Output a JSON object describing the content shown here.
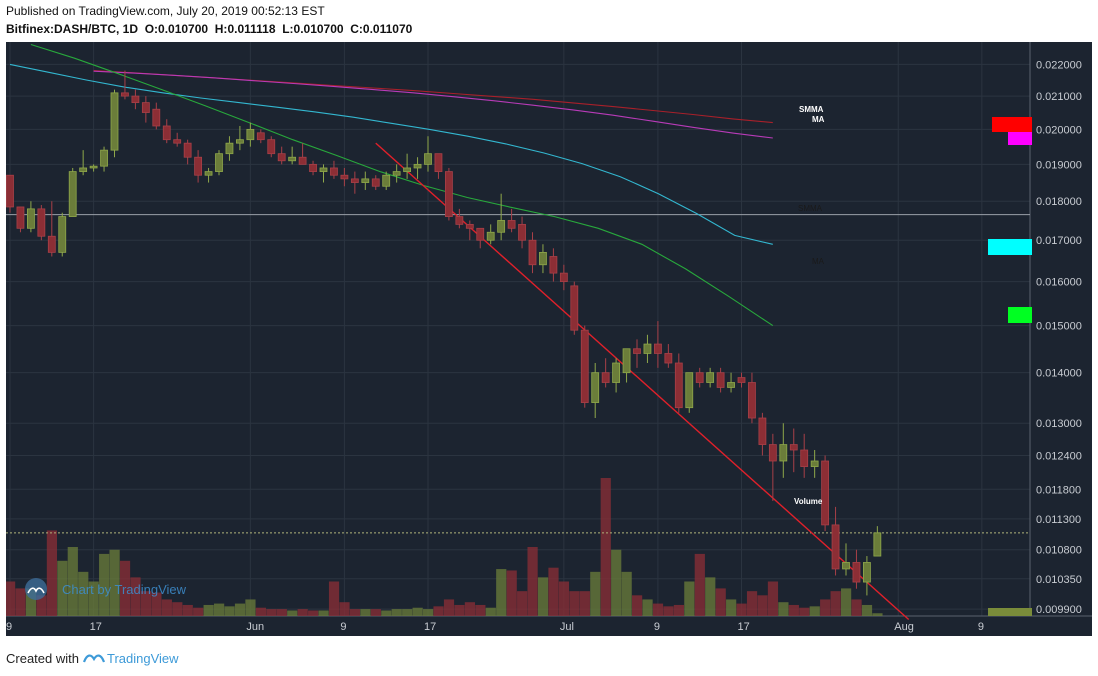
{
  "header": {
    "published": "Published on TradingView.com, July 20, 2019 00:52:13 EST",
    "symbol": "Bitfinex:DASH/BTC, 1D",
    "o_label": "O:",
    "o_value": "0.010700",
    "h_label": "H:",
    "h_value": "0.011118",
    "l_label": "L:",
    "l_value": "0.010700",
    "c_label": "C:",
    "c_value": "0.011070"
  },
  "footer": {
    "created_with": "Created with",
    "brand": "TradingView"
  },
  "watermark": "Chart by TradingView",
  "colors": {
    "background": "#1c2430",
    "up": "#6b7d3a",
    "down": "#8c2e35",
    "grid": "#2b3440",
    "smma_red": "#a8202a",
    "ma_magenta": "#b83bb8",
    "cyan": "#33b7d0",
    "green": "#28a83c",
    "trendline": "#e0202a"
  },
  "chart_data": {
    "type": "candlestick",
    "scale": "log",
    "y_ticks": [
      "0.022000",
      "0.021000",
      "0.020000",
      "0.019000",
      "0.018000",
      "0.017000",
      "0.016000",
      "0.015000",
      "0.014000",
      "0.013000",
      "0.012400",
      "0.011800",
      "0.011300",
      "0.010800",
      "0.010350",
      "0.009900"
    ],
    "x_ticks": [
      "9",
      "17",
      "Jun",
      "9",
      "17",
      "Jul",
      "9",
      "17",
      "Aug",
      "9"
    ],
    "ylim": [
      0.0098,
      0.0226
    ],
    "candles": [
      [
        0.0187,
        0.0187,
        0.0177,
        0.01785,
        0.25
      ],
      [
        0.01785,
        0.01785,
        0.0172,
        0.0173,
        0.2
      ],
      [
        0.0173,
        0.018,
        0.0172,
        0.0178,
        0.2
      ],
      [
        0.0178,
        0.0179,
        0.017,
        0.0171,
        0.15
      ],
      [
        0.0171,
        0.018,
        0.0166,
        0.0167,
        0.62
      ],
      [
        0.0167,
        0.0177,
        0.0166,
        0.0176,
        0.4
      ],
      [
        0.0176,
        0.0189,
        0.0176,
        0.0188,
        0.5
      ],
      [
        0.0188,
        0.0194,
        0.0187,
        0.0189,
        0.32
      ],
      [
        0.0189,
        0.019,
        0.0188,
        0.01895,
        0.25
      ],
      [
        0.01895,
        0.0195,
        0.0188,
        0.0194,
        0.45
      ],
      [
        0.0194,
        0.0212,
        0.0192,
        0.0211,
        0.48
      ],
      [
        0.0211,
        0.0218,
        0.0209,
        0.021,
        0.4
      ],
      [
        0.021,
        0.0212,
        0.0206,
        0.0208,
        0.28
      ],
      [
        0.0208,
        0.021,
        0.0202,
        0.0205,
        0.18
      ],
      [
        0.0206,
        0.0208,
        0.02,
        0.0201,
        0.17
      ],
      [
        0.0201,
        0.0203,
        0.0196,
        0.0197,
        0.12
      ],
      [
        0.0197,
        0.0199,
        0.0195,
        0.0196,
        0.1
      ],
      [
        0.0196,
        0.0197,
        0.019,
        0.0192,
        0.08
      ],
      [
        0.0192,
        0.0194,
        0.0185,
        0.0187,
        0.06
      ],
      [
        0.0187,
        0.0189,
        0.0185,
        0.0188,
        0.08
      ],
      [
        0.0188,
        0.0194,
        0.0187,
        0.0193,
        0.09
      ],
      [
        0.0193,
        0.0198,
        0.0191,
        0.0196,
        0.07
      ],
      [
        0.0196,
        0.0201,
        0.0194,
        0.0197,
        0.09
      ],
      [
        0.0197,
        0.0202,
        0.0195,
        0.02,
        0.12
      ],
      [
        0.0199,
        0.02,
        0.0196,
        0.0197,
        0.06
      ],
      [
        0.0197,
        0.0198,
        0.0192,
        0.0193,
        0.05
      ],
      [
        0.0193,
        0.0195,
        0.019,
        0.0191,
        0.05
      ],
      [
        0.0191,
        0.0195,
        0.019,
        0.0192,
        0.04
      ],
      [
        0.0192,
        0.0196,
        0.0191,
        0.019,
        0.05
      ],
      [
        0.019,
        0.0191,
        0.0187,
        0.0188,
        0.04
      ],
      [
        0.0188,
        0.019,
        0.0185,
        0.0189,
        0.04
      ],
      [
        0.0189,
        0.0191,
        0.0186,
        0.0187,
        0.25
      ],
      [
        0.0187,
        0.0189,
        0.0184,
        0.0186,
        0.1
      ],
      [
        0.0186,
        0.0188,
        0.0182,
        0.0185,
        0.05
      ],
      [
        0.0185,
        0.0188,
        0.0183,
        0.0186,
        0.05
      ],
      [
        0.0186,
        0.0187,
        0.0183,
        0.0184,
        0.05
      ],
      [
        0.0184,
        0.0188,
        0.0183,
        0.0187,
        0.04
      ],
      [
        0.0187,
        0.019,
        0.0185,
        0.0188,
        0.05
      ],
      [
        0.0188,
        0.0193,
        0.0186,
        0.0189,
        0.05
      ],
      [
        0.0189,
        0.0192,
        0.0186,
        0.019,
        0.06
      ],
      [
        0.019,
        0.0198,
        0.0188,
        0.0193,
        0.05
      ],
      [
        0.0193,
        0.0193,
        0.0186,
        0.0188,
        0.07
      ],
      [
        0.0188,
        0.0189,
        0.0175,
        0.0176,
        0.12
      ],
      [
        0.0176,
        0.0178,
        0.0173,
        0.0174,
        0.08
      ],
      [
        0.0174,
        0.0175,
        0.017,
        0.0173,
        0.1
      ],
      [
        0.0173,
        0.0173,
        0.0168,
        0.017,
        0.08
      ],
      [
        0.017,
        0.0174,
        0.0169,
        0.0172,
        0.06
      ],
      [
        0.0172,
        0.0182,
        0.017,
        0.0175,
        0.34
      ],
      [
        0.0175,
        0.0178,
        0.0172,
        0.0173,
        0.33
      ],
      [
        0.0174,
        0.0176,
        0.0168,
        0.017,
        0.18
      ],
      [
        0.017,
        0.0172,
        0.0162,
        0.0164,
        0.5
      ],
      [
        0.0164,
        0.0169,
        0.0162,
        0.0167,
        0.28
      ],
      [
        0.0166,
        0.0168,
        0.016,
        0.0162,
        0.35
      ],
      [
        0.0162,
        0.0164,
        0.0158,
        0.016,
        0.25
      ],
      [
        0.0159,
        0.016,
        0.0148,
        0.0149,
        0.18
      ],
      [
        0.0149,
        0.015,
        0.0133,
        0.0134,
        0.18
      ],
      [
        0.0134,
        0.0142,
        0.0131,
        0.014,
        0.32
      ],
      [
        0.014,
        0.0143,
        0.0137,
        0.0138,
        1.0
      ],
      [
        0.0138,
        0.0143,
        0.0136,
        0.0142,
        0.48
      ],
      [
        0.014,
        0.0145,
        0.0138,
        0.0145,
        0.32
      ],
      [
        0.0145,
        0.0147,
        0.0141,
        0.0144,
        0.15
      ],
      [
        0.0144,
        0.0148,
        0.0142,
        0.0146,
        0.12
      ],
      [
        0.0146,
        0.0151,
        0.0141,
        0.0144,
        0.09
      ],
      [
        0.0144,
        0.0146,
        0.0141,
        0.0142,
        0.07
      ],
      [
        0.0142,
        0.0144,
        0.0132,
        0.0133,
        0.08
      ],
      [
        0.0133,
        0.014,
        0.0132,
        0.014,
        0.25
      ],
      [
        0.014,
        0.0141,
        0.0137,
        0.0138,
        0.45
      ],
      [
        0.0138,
        0.0141,
        0.0137,
        0.014,
        0.28
      ],
      [
        0.014,
        0.0141,
        0.0136,
        0.0137,
        0.2
      ],
      [
        0.0137,
        0.014,
        0.0136,
        0.0138,
        0.12
      ],
      [
        0.0139,
        0.014,
        0.0137,
        0.0138,
        0.09
      ],
      [
        0.0138,
        0.014,
        0.013,
        0.0131,
        0.18
      ],
      [
        0.0131,
        0.0132,
        0.0124,
        0.0126,
        0.15
      ],
      [
        0.0126,
        0.0128,
        0.0116,
        0.0123,
        0.25
      ],
      [
        0.0123,
        0.013,
        0.012,
        0.0126,
        0.1
      ],
      [
        0.0126,
        0.0129,
        0.0121,
        0.0125,
        0.08
      ],
      [
        0.0125,
        0.0128,
        0.012,
        0.0122,
        0.06
      ],
      [
        0.0122,
        0.0125,
        0.012,
        0.0123,
        0.07
      ],
      [
        0.0123,
        0.0124,
        0.0111,
        0.0112,
        0.12
      ],
      [
        0.0112,
        0.0115,
        0.0104,
        0.0105,
        0.18
      ],
      [
        0.0105,
        0.0109,
        0.0104,
        0.0106,
        0.2
      ],
      [
        0.0106,
        0.0108,
        0.0102,
        0.0103,
        0.12
      ],
      [
        0.0103,
        0.0107,
        0.0101,
        0.0106,
        0.08
      ],
      [
        0.0107,
        0.01118,
        0.0107,
        0.01107,
        0.02
      ]
    ],
    "smma_red": [
      0.0218,
      0.02173,
      0.02165,
      0.02157,
      0.02149,
      0.02141,
      0.02133,
      0.02125,
      0.02117,
      0.02108,
      0.02099,
      0.0209,
      0.02079,
      0.02068,
      0.02056,
      0.02044,
      0.02031,
      0.0202
    ],
    "ma_magenta": [
      0.02178,
      0.02172,
      0.02165,
      0.02157,
      0.02148,
      0.02139,
      0.0213,
      0.0212,
      0.0211,
      0.02098,
      0.02086,
      0.02072,
      0.02058,
      0.02042,
      0.02024,
      0.02006,
      0.01989,
      0.01975
    ],
    "ma_cyan": [
      0.022,
      0.02175,
      0.0215,
      0.02128,
      0.0211,
      0.02094,
      0.0208,
      0.02066,
      0.02052,
      0.02036,
      0.02018,
      0.02,
      0.0198,
      0.01958,
      0.01932,
      0.01902,
      0.01866,
      0.0182,
      0.01768,
      0.01712,
      0.0169
    ],
    "ma_green": [
      0.02265,
      0.0222,
      0.0217,
      0.0212,
      0.0207,
      0.0202,
      0.0197,
      0.01925,
      0.0188,
      0.01842,
      0.0181,
      0.01784,
      0.0176,
      0.0173,
      0.0169,
      0.0163,
      0.01565,
      0.015
    ],
    "support_level": 0.01765,
    "last_close": 0.01107,
    "trendline": [
      [
        0.0196,
        0.00975
      ]
    ],
    "labels": {
      "smma": "SMMA",
      "ma": "MA",
      "volume": "Volume"
    }
  }
}
